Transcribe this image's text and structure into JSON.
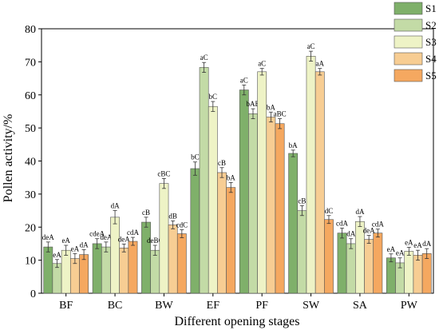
{
  "chart_data": {
    "type": "bar",
    "title": "",
    "xlabel": "Different opening stages",
    "ylabel": "Pollen activity/%",
    "ylim": [
      0,
      80
    ],
    "yticks": [
      0,
      10,
      20,
      30,
      40,
      50,
      60,
      70,
      80
    ],
    "grid": false,
    "legend_position": "top-right",
    "categories": [
      "BF",
      "BC",
      "BW",
      "EF",
      "PF",
      "SW",
      "SA",
      "PW"
    ],
    "series": [
      {
        "name": "S1",
        "color": "#7fb06a",
        "values": [
          14.0,
          15.0,
          21.5,
          37.7,
          61.5,
          42.3,
          18.2,
          10.7
        ],
        "errors": [
          1.5,
          1.5,
          1.5,
          2.0,
          1.5,
          1.0,
          1.5,
          1.2
        ],
        "labels": [
          "deA",
          "cdeA",
          "cB",
          "bC",
          "aC",
          "bA",
          "cdA",
          "eA"
        ]
      },
      {
        "name": "S2",
        "color": "#c3dba6",
        "values": [
          9.0,
          14.0,
          13.0,
          68.3,
          54.3,
          25.0,
          15.0,
          9.2
        ],
        "errors": [
          1.2,
          1.5,
          1.5,
          1.5,
          1.5,
          1.5,
          1.5,
          1.5
        ],
        "labels": [
          "eA",
          "deA",
          "deBC",
          "aC",
          "bAB",
          "cB",
          "dA",
          "eA"
        ]
      },
      {
        "name": "S3",
        "color": "#eef3c6",
        "values": [
          13.0,
          23.0,
          33.2,
          56.5,
          67.0,
          71.7,
          21.7,
          12.7
        ],
        "errors": [
          1.5,
          2.0,
          1.5,
          1.5,
          1.0,
          1.5,
          1.5,
          1.2
        ],
        "labels": [
          "eA",
          "dA",
          "cBC",
          "bC",
          "aC",
          "aC",
          "dA",
          "eA"
        ]
      },
      {
        "name": "S4",
        "color": "#f7cd93",
        "values": [
          10.5,
          13.7,
          20.7,
          36.5,
          53.3,
          67.0,
          16.3,
          11.5
        ],
        "errors": [
          1.5,
          1.2,
          1.2,
          1.5,
          1.5,
          1.0,
          1.2,
          1.5
        ],
        "labels": [
          "eA",
          "deA",
          "dB",
          "cB",
          "bA",
          "aA",
          "deA",
          "eA"
        ]
      },
      {
        "name": "S5",
        "color": "#f5a860",
        "values": [
          11.7,
          15.7,
          18.0,
          32.0,
          51.3,
          22.3,
          18.2,
          12.0
        ],
        "errors": [
          1.5,
          1.2,
          1.2,
          1.5,
          1.5,
          1.2,
          1.2,
          1.5
        ],
        "labels": [
          "dA",
          "cdA",
          "cdC",
          "bA",
          "aBC",
          "dC",
          "cdA",
          "dA"
        ]
      }
    ]
  }
}
